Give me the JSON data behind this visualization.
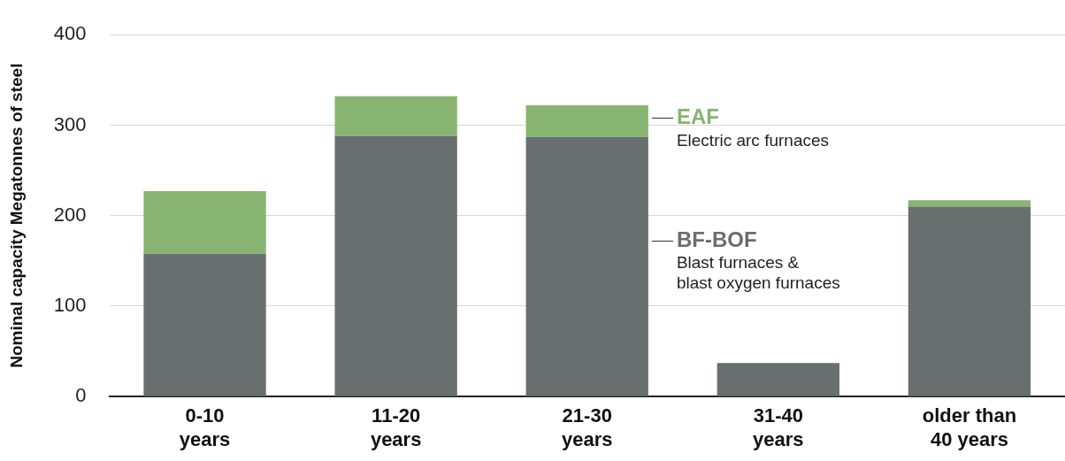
{
  "chart_data": {
    "type": "bar",
    "stacked": true,
    "categories": [
      "0-10\nyears",
      "11-20\nyears",
      "21-30\nyears",
      "31-40\nyears",
      "older than\n40 years"
    ],
    "series": [
      {
        "name": "BF-BOF",
        "color": "#676f6f",
        "values": [
          158,
          288,
          287,
          37,
          210
        ]
      },
      {
        "name": "EAF",
        "color": "#88b471",
        "values": [
          69,
          44,
          35,
          0,
          7
        ]
      }
    ],
    "ylabel": "Nominal capacity Megatonnes of steel",
    "ylim": [
      0,
      400
    ],
    "yticks": [
      0,
      100,
      200,
      300,
      400
    ],
    "grid": "y",
    "legend": false,
    "annotations": [
      "Blast furnaces &\nblast oxygen furnaces",
      "Electric arc furnaces"
    ]
  }
}
